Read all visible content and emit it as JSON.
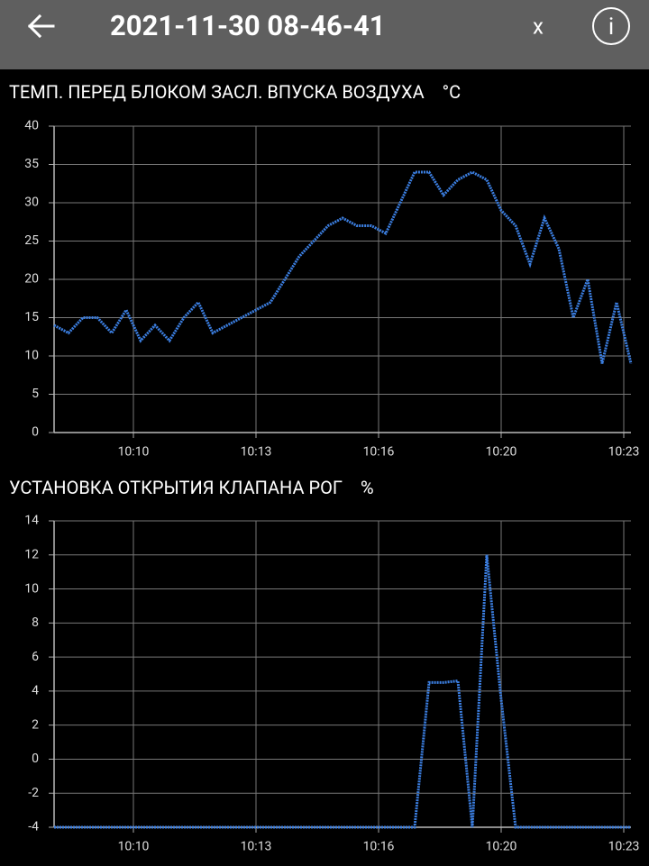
{
  "header": {
    "title": "2021-11-30 08-46-41",
    "close": "x",
    "info": "i"
  },
  "chart_data": [
    {
      "type": "line",
      "title": "ТЕМП. ПЕРЕД БЛОКОМ ЗАСЛ. ВПУСКА ВОЗДУХА",
      "unit": "°C",
      "color": "#3b7ee0",
      "grid": true,
      "x": [
        0,
        4,
        8,
        12,
        16,
        20,
        24,
        28,
        32,
        36,
        40,
        44,
        48,
        52,
        56,
        60,
        64,
        68,
        72,
        76,
        80,
        84,
        88,
        92,
        96,
        100,
        104,
        108,
        112,
        116,
        120,
        124,
        128,
        132,
        136,
        140,
        144,
        148,
        152,
        156,
        160
      ],
      "values": [
        14,
        13,
        15,
        15,
        13,
        16,
        12,
        14,
        12,
        15,
        17,
        13,
        14,
        15,
        16,
        17,
        20,
        23,
        25,
        27,
        28,
        27,
        27,
        26,
        30,
        34,
        34,
        31,
        33,
        34,
        33,
        29,
        27,
        22,
        28,
        24,
        15,
        20,
        9,
        17,
        9
      ],
      "xlim": [
        0,
        160
      ],
      "ylim": [
        0,
        40
      ],
      "xticks": [
        {
          "value": 22,
          "label": "10:10"
        },
        {
          "value": 56,
          "label": "10:13"
        },
        {
          "value": 90,
          "label": "10:16"
        },
        {
          "value": 124,
          "label": "10:20"
        },
        {
          "value": 158,
          "label": "10:23"
        }
      ],
      "yticks": [
        0,
        5,
        10,
        15,
        20,
        25,
        30,
        35,
        40
      ]
    },
    {
      "type": "line",
      "title": "УСТАНОВКА ОТКРЫТИЯ КЛАПАНА РОГ",
      "unit": "%",
      "color": "#3b7ee0",
      "grid": true,
      "x": [
        0,
        4,
        8,
        12,
        16,
        20,
        24,
        28,
        32,
        36,
        40,
        44,
        48,
        52,
        56,
        60,
        64,
        68,
        72,
        76,
        80,
        84,
        88,
        92,
        96,
        100,
        104,
        108,
        112,
        116,
        120,
        124,
        128,
        132,
        136,
        140,
        144,
        148,
        152,
        156,
        160
      ],
      "values": [
        -4,
        -4,
        -4,
        -4,
        -4,
        -4,
        -4,
        -4,
        -4,
        -4,
        -4,
        -4,
        -4,
        -4,
        -4,
        -4,
        -4,
        -4,
        -4,
        -4,
        -4,
        -4,
        -4,
        -4,
        -4,
        -4,
        4.5,
        4.5,
        4.6,
        -4,
        12,
        3.5,
        -4,
        -4,
        -4,
        -4,
        -4,
        -4,
        -4,
        -4,
        -4
      ],
      "xlim": [
        0,
        160
      ],
      "ylim": [
        -4,
        14
      ],
      "xticks": [
        {
          "value": 22,
          "label": "10:10"
        },
        {
          "value": 56,
          "label": "10:13"
        },
        {
          "value": 90,
          "label": "10:16"
        },
        {
          "value": 124,
          "label": "10:20"
        },
        {
          "value": 158,
          "label": "10:23"
        }
      ],
      "yticks": [
        -4,
        -2,
        0,
        2,
        4,
        6,
        8,
        10,
        12,
        14
      ]
    }
  ]
}
